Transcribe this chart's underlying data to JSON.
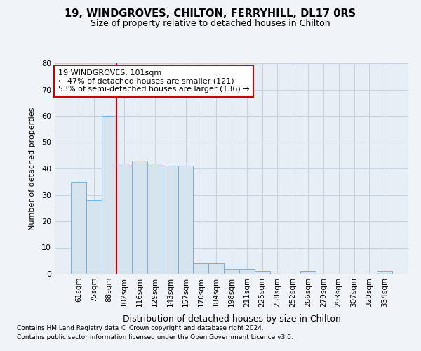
{
  "title1": "19, WINDGROVES, CHILTON, FERRYHILL, DL17 0RS",
  "title2": "Size of property relative to detached houses in Chilton",
  "xlabel": "Distribution of detached houses by size in Chilton",
  "ylabel": "Number of detached properties",
  "categories": [
    "61sqm",
    "75sqm",
    "88sqm",
    "102sqm",
    "116sqm",
    "129sqm",
    "143sqm",
    "157sqm",
    "170sqm",
    "184sqm",
    "198sqm",
    "211sqm",
    "225sqm",
    "238sqm",
    "252sqm",
    "266sqm",
    "279sqm",
    "293sqm",
    "307sqm",
    "320sqm",
    "334sqm"
  ],
  "values": [
    35,
    28,
    60,
    42,
    43,
    42,
    41,
    41,
    4,
    4,
    2,
    2,
    1,
    0,
    0,
    1,
    0,
    0,
    0,
    0,
    1
  ],
  "bar_color": "#d6e4f0",
  "bar_edge_color": "#7bafd4",
  "vline_x_index": 2.5,
  "vline_color": "#cc0000",
  "annotation_line1": "19 WINDGROVES: 101sqm",
  "annotation_line2": "← 47% of detached houses are smaller (121)",
  "annotation_line3": "53% of semi-detached houses are larger (136) →",
  "annotation_box_color": "#cc0000",
  "ylim": [
    0,
    80
  ],
  "yticks": [
    0,
    10,
    20,
    30,
    40,
    50,
    60,
    70,
    80
  ],
  "background_color": "#f0f4f8",
  "plot_bg_color": "#e8eef5",
  "grid_color": "#c8d4e0",
  "footer_line1": "Contains HM Land Registry data © Crown copyright and database right 2024.",
  "footer_line2": "Contains public sector information licensed under the Open Government Licence v3.0."
}
